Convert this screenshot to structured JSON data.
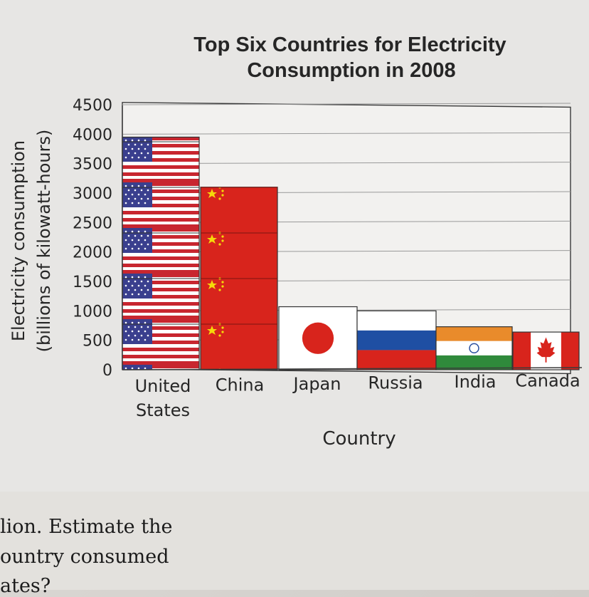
{
  "chart_data": {
    "type": "bar",
    "title": "Top Six Countries for Electricity Consumption in 2008",
    "title_lines": [
      "Top Six Countries for Electricity",
      "Consumption in 2008"
    ],
    "xlabel": "Country",
    "ylabel_lines": [
      "Electricity consumption",
      "(billions of kilowatt-hours)"
    ],
    "categories": [
      {
        "lines": [
          "United",
          "States"
        ]
      },
      {
        "lines": [
          "China"
        ]
      },
      {
        "lines": [
          "Japan"
        ]
      },
      {
        "lines": [
          "Russia"
        ]
      },
      {
        "lines": [
          "India"
        ]
      },
      {
        "lines": [
          "Canada"
        ]
      }
    ],
    "values": [
      3950,
      3100,
      1070,
      1000,
      730,
      640
    ],
    "ylim": [
      0,
      4500
    ],
    "yticks": [
      "0",
      "500",
      "1000",
      "1500",
      "2000",
      "2500",
      "3000",
      "3500",
      "4000",
      "4500"
    ],
    "grid": true,
    "bar_style": "national flag images",
    "flags": [
      "us-flag-icon",
      "china-flag-icon",
      "japan-flag-icon",
      "russia-flag-icon",
      "india-flag-icon",
      "canada-flag-icon"
    ],
    "colors": {
      "china_red": "#d8241c",
      "star_yellow": "#f5d90a",
      "us_red": "#c8262f",
      "us_blue": "#3a3f8e",
      "russia_blue": "#1f4fa3",
      "india_saffron": "#e98b2b",
      "india_green": "#2f8a3b",
      "grid": "#9a9a9a",
      "text": "#262626"
    }
  },
  "book_text": [
    "lion. Estimate the",
    "ountry consumed",
    "ates?"
  ]
}
